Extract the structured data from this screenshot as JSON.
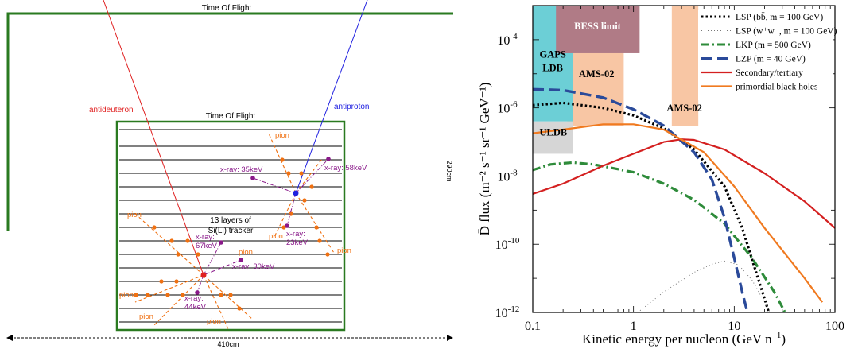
{
  "diagram": {
    "time_of_flight_top": "Time Of Flight",
    "time_of_flight_inner": "Time Of Flight",
    "antideuteron": "antideuteron",
    "antiproton": "antiproton",
    "tracker": [
      "13 layers of",
      "Si(Li) tracker"
    ],
    "width": "410cm",
    "height": "290cm",
    "pion": "pion",
    "xrays": [
      {
        "line1": "x-ray: 35keV"
      },
      {
        "line1": "x-ray: 58keV"
      },
      {
        "line1": "x-ray:",
        "line2": "23keV"
      },
      {
        "line1": "x-ray:",
        "line2": "67keV"
      },
      {
        "line1": "x-ray: 30keV"
      },
      {
        "line1": "x-ray:",
        "line2": "44keV"
      }
    ],
    "colors": {
      "detector": "#2a7a20",
      "antideuteron": "#e02020",
      "antiproton": "#2020e0",
      "pion": "#f07010",
      "xray": "#8a1a8a"
    }
  },
  "chart_data": {
    "type": "line",
    "xlabel": "Kinetic energy per nucleon (GeV n",
    "xlabel_sup": "−1",
    "xlabel_end": ")",
    "ylabel": "D flux (m",
    "ylabel_full": "D̄ flux (m⁻² s⁻¹ sr⁻¹ GeV⁻¹)",
    "x_scale": "log",
    "y_scale": "log",
    "xlim": [
      0.1,
      100
    ],
    "ylim": [
      1e-12,
      0.001
    ],
    "x_ticks": [
      {
        "v": 0.1,
        "label": "0.1"
      },
      {
        "v": 1,
        "label": "1"
      },
      {
        "v": 10,
        "label": "10"
      },
      {
        "v": 100,
        "label": "100"
      }
    ],
    "y_ticks": [
      {
        "v": 1e-12,
        "base": "10",
        "exp": "-12"
      },
      {
        "v": 1e-10,
        "base": "10",
        "exp": "-10"
      },
      {
        "v": 1e-08,
        "base": "10",
        "exp": "-8"
      },
      {
        "v": 1e-06,
        "base": "10",
        "exp": "-6"
      },
      {
        "v": 0.0001,
        "base": "10",
        "exp": "-4"
      }
    ],
    "regions": [
      {
        "label": "BESS limit",
        "x": [
          0.17,
          1.15
        ],
        "y": [
          4e-05,
          0.001
        ],
        "color": "#b07b86",
        "text_color": "#ffffff"
      },
      {
        "label": "GAPS",
        "label2": "LDB",
        "x": [
          0.1,
          0.25
        ],
        "y": [
          4e-07,
          0.001
        ],
        "color": "#6ccfd6",
        "text_color": "#000000"
      },
      {
        "label": "AMS-02",
        "x": [
          0.22,
          0.8
        ],
        "y": [
          3e-07,
          0.00012
        ],
        "color": "#f8c6a4",
        "text_color": "#000000"
      },
      {
        "label": "AMS-02",
        "x": [
          2.4,
          4.4
        ],
        "y": [
          3e-07,
          0.001
        ],
        "color": "#f8c6a4",
        "text_color": "#000000"
      },
      {
        "label": "ULDB",
        "x": [
          0.1,
          0.25
        ],
        "y": [
          4.5e-08,
          4e-07
        ],
        "color": "#d6d6d6",
        "text_color": "#000000"
      }
    ],
    "series": [
      {
        "name": "LSP  (bb̄, m = 100 GeV)",
        "color": "#000000",
        "dash": "2.5,3",
        "width": 3.2,
        "x": [
          0.1,
          0.2,
          0.5,
          1,
          2,
          4,
          8,
          12,
          16,
          20,
          25
        ],
        "y": [
          1.2e-06,
          1.4e-06,
          1e-06,
          6e-07,
          2.5e-07,
          6e-08,
          5e-09,
          3e-10,
          2e-11,
          2.5e-12,
          3e-13
        ]
      },
      {
        "name": "LSP  (w⁺w⁻, m = 100 GeV)",
        "color": "#777777",
        "dash": "1,3",
        "width": 1,
        "x": [
          0.6,
          1,
          2,
          4,
          6,
          8,
          11,
          15,
          20,
          30
        ],
        "y": [
          3e-13,
          8e-13,
          4e-12,
          1.5e-11,
          2.6e-11,
          3.2e-11,
          2.5e-11,
          9e-12,
          2e-12,
          2e-13
        ]
      },
      {
        "name": "LKP (m = 500 GeV)",
        "color": "#2e8b3a",
        "dash": "10,4,2,4",
        "width": 3.2,
        "x": [
          0.1,
          0.15,
          0.25,
          0.4,
          1,
          2,
          4,
          8,
          15,
          25,
          35
        ],
        "y": [
          1.5e-08,
          2.2e-08,
          2.5e-08,
          2.2e-08,
          1.3e-08,
          6e-09,
          2e-09,
          4e-10,
          4e-11,
          4e-12,
          6e-13
        ]
      },
      {
        "name": "LZP (m = 40 GeV)",
        "color": "#2a4a9a",
        "dash": "14,6",
        "width": 3.4,
        "x": [
          0.1,
          0.2,
          0.5,
          1,
          2,
          4,
          6,
          8,
          10,
          12,
          15
        ],
        "y": [
          3.5e-06,
          3.3e-06,
          2e-06,
          9e-07,
          3e-07,
          5e-08,
          8e-09,
          6e-10,
          4e-11,
          4e-12,
          3e-13
        ]
      },
      {
        "name": "Secondary/tertiary",
        "color": "#d42020",
        "dash": "",
        "width": 2.2,
        "x": [
          0.1,
          0.2,
          0.5,
          1,
          2,
          3,
          4,
          8,
          20,
          50,
          100
        ],
        "y": [
          3e-09,
          6e-09,
          2e-08,
          4.5e-08,
          1e-07,
          1.2e-07,
          1.15e-07,
          6e-08,
          1.2e-08,
          1.8e-09,
          3e-10
        ]
      },
      {
        "name": "primordial black holes",
        "color": "#f07a20",
        "dash": "",
        "width": 2.2,
        "x": [
          0.1,
          0.2,
          0.5,
          1,
          2,
          5,
          10,
          20,
          50,
          75
        ],
        "y": [
          1.8e-07,
          2.3e-07,
          3.3e-07,
          3.3e-07,
          2.3e-07,
          5e-08,
          5e-09,
          3e-10,
          1e-11,
          2e-12
        ]
      }
    ],
    "legend": "top-right"
  }
}
